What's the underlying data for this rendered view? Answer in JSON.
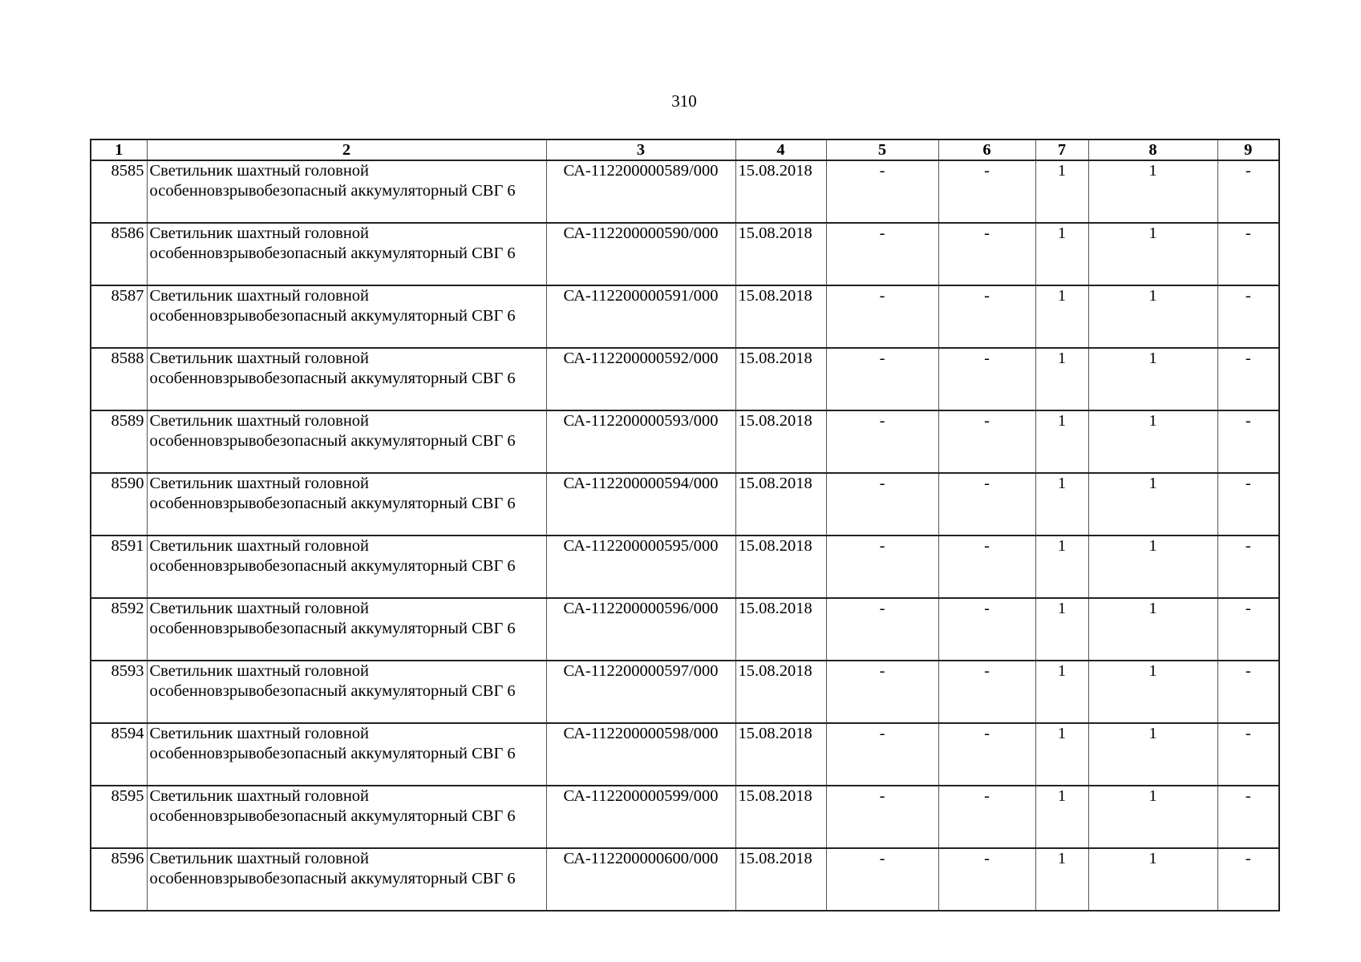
{
  "page_number": "310",
  "columns": [
    "1",
    "2",
    "3",
    "4",
    "5",
    "6",
    "7",
    "8",
    "9"
  ],
  "rows": [
    {
      "num": "8585",
      "name": "Светильник шахтный головной особенновзрывобезопасный аккумуляторный СВГ 6",
      "code": "СА-112200000589/000",
      "date": "15.08.2018",
      "c5": "-",
      "c6": "-",
      "c7": "1",
      "c8": "1",
      "c9": "-"
    },
    {
      "num": "8586",
      "name": "Светильник шахтный головной особенновзрывобезопасный аккумуляторный СВГ 6",
      "code": "СА-112200000590/000",
      "date": "15.08.2018",
      "c5": "-",
      "c6": "-",
      "c7": "1",
      "c8": "1",
      "c9": "-"
    },
    {
      "num": "8587",
      "name": "Светильник шахтный головной особенновзрывобезопасный аккумуляторный СВГ 6",
      "code": "СА-112200000591/000",
      "date": "15.08.2018",
      "c5": "-",
      "c6": "-",
      "c7": "1",
      "c8": "1",
      "c9": "-"
    },
    {
      "num": "8588",
      "name": "Светильник шахтный головной особенновзрывобезопасный аккумуляторный СВГ 6",
      "code": "СА-112200000592/000",
      "date": "15.08.2018",
      "c5": "-",
      "c6": "-",
      "c7": "1",
      "c8": "1",
      "c9": "-"
    },
    {
      "num": "8589",
      "name": "Светильник шахтный головной особенновзрывобезопасный аккумуляторный СВГ 6",
      "code": "СА-112200000593/000",
      "date": "15.08.2018",
      "c5": "-",
      "c6": "-",
      "c7": "1",
      "c8": "1",
      "c9": "-"
    },
    {
      "num": "8590",
      "name": "Светильник шахтный головной особенновзрывобезопасный аккумуляторный СВГ 6",
      "code": "СА-112200000594/000",
      "date": "15.08.2018",
      "c5": "-",
      "c6": "-",
      "c7": "1",
      "c8": "1",
      "c9": "-"
    },
    {
      "num": "8591",
      "name": "Светильник шахтный головной особенновзрывобезопасный аккумуляторный СВГ 6",
      "code": "СА-112200000595/000",
      "date": "15.08.2018",
      "c5": "-",
      "c6": "-",
      "c7": "1",
      "c8": "1",
      "c9": "-"
    },
    {
      "num": "8592",
      "name": "Светильник шахтный головной особенновзрывобезопасный аккумуляторный СВГ 6",
      "code": "СА-112200000596/000",
      "date": "15.08.2018",
      "c5": "-",
      "c6": "-",
      "c7": "1",
      "c8": "1",
      "c9": "-"
    },
    {
      "num": "8593",
      "name": "Светильник шахтный головной особенновзрывобезопасный аккумуляторный СВГ 6",
      "code": "СА-112200000597/000",
      "date": "15.08.2018",
      "c5": "-",
      "c6": "-",
      "c7": "1",
      "c8": "1",
      "c9": "-"
    },
    {
      "num": "8594",
      "name": "Светильник шахтный головной особенновзрывобезопасный аккумуляторный СВГ 6",
      "code": "СА-112200000598/000",
      "date": "15.08.2018",
      "c5": "-",
      "c6": "-",
      "c7": "1",
      "c8": "1",
      "c9": "-"
    },
    {
      "num": "8595",
      "name": "Светильник шахтный головной особенновзрывобезопасный аккумуляторный СВГ 6",
      "code": "СА-112200000599/000",
      "date": "15.08.2018",
      "c5": "-",
      "c6": "-",
      "c7": "1",
      "c8": "1",
      "c9": "-"
    },
    {
      "num": "8596",
      "name": "Светильник шахтный головной особенновзрывобезопасный аккумуляторный СВГ 6",
      "code": "СА-112200000600/000",
      "date": "15.08.2018",
      "c5": "-",
      "c6": "-",
      "c7": "1",
      "c8": "1",
      "c9": "-"
    }
  ]
}
